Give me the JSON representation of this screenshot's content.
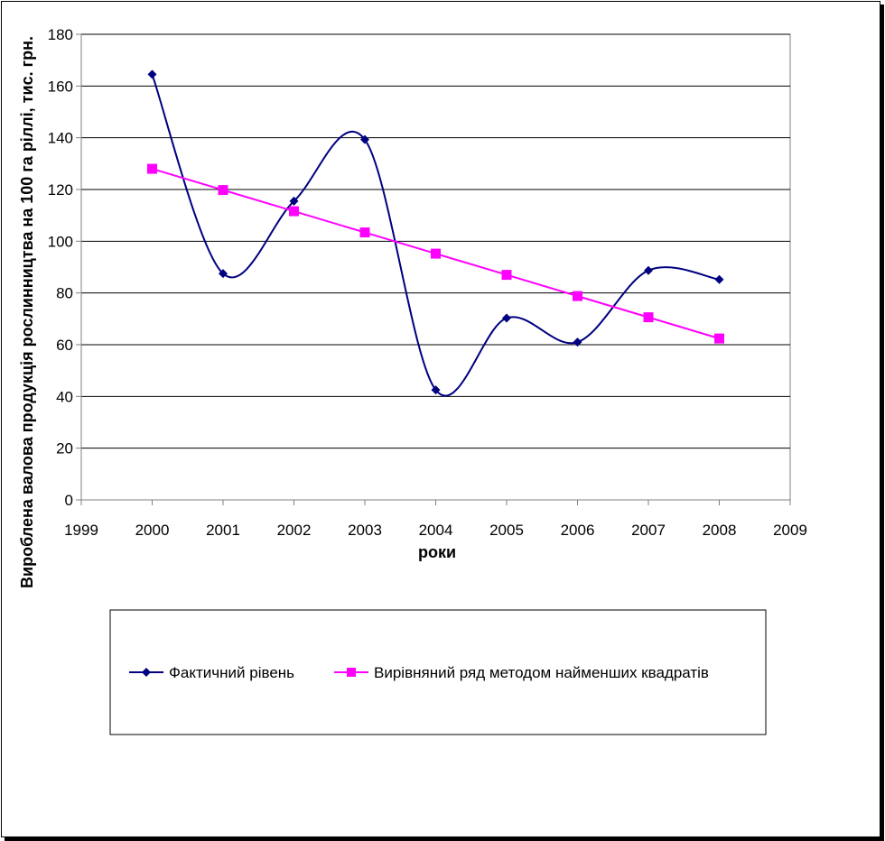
{
  "chart_data": {
    "type": "line",
    "xlabel": "роки",
    "ylabel": "Вироблена валова продукція рослинництва на 100 га ріллі, тис. грн.",
    "xlim": [
      1999,
      2009
    ],
    "ylim": [
      0,
      180
    ],
    "xticks": [
      1999,
      2000,
      2001,
      2002,
      2003,
      2004,
      2005,
      2006,
      2007,
      2008,
      2009
    ],
    "yticks": [
      0,
      20,
      40,
      60,
      80,
      100,
      120,
      140,
      160,
      180
    ],
    "grid": "horizontal",
    "legend_position": "bottom",
    "x": [
      2000,
      2001,
      2002,
      2003,
      2004,
      2005,
      2006,
      2007,
      2008
    ],
    "series": [
      {
        "name": "Фактичний рівень",
        "color": "#000080",
        "marker": "diamond",
        "smooth": true,
        "values": [
          164.5,
          87.5,
          115.5,
          139.3,
          42.5,
          70.3,
          61.0,
          88.7,
          85.2
        ]
      },
      {
        "name": "Вирівняний ряд методом найменших квадратів",
        "color": "#FF00FF",
        "marker": "square",
        "smooth": false,
        "values": [
          128.0,
          119.8,
          111.6,
          103.4,
          95.2,
          87.0,
          78.8,
          70.6,
          62.4
        ]
      }
    ]
  }
}
